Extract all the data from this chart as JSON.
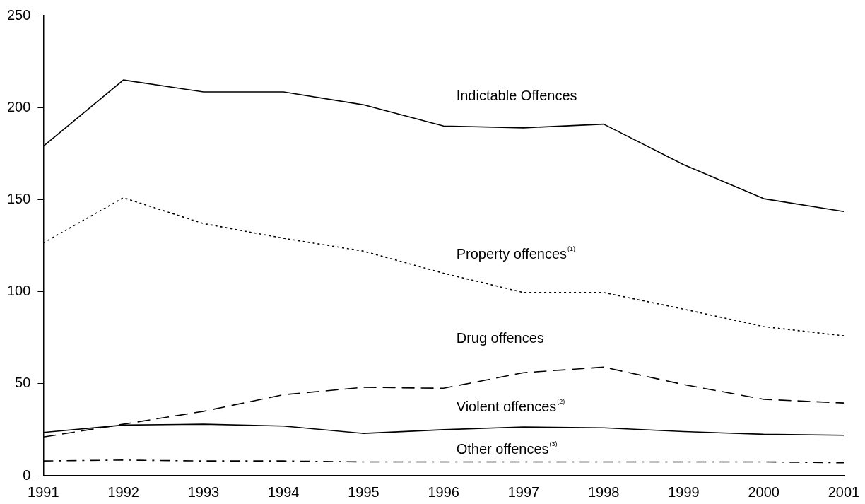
{
  "chart_data": {
    "type": "line",
    "categories": [
      "1991",
      "1992",
      "1993",
      "1994",
      "1995",
      "1996",
      "1997",
      "1998",
      "1999",
      "2000",
      "2001"
    ],
    "ylim": [
      0,
      250
    ],
    "yticks": [
      0,
      50,
      100,
      150,
      200,
      250
    ],
    "grid": false,
    "legend": false,
    "marker": "none",
    "series": [
      {
        "name": "Indictable Offences",
        "color": "#000000",
        "line_style": "solid",
        "values": [
          179,
          215,
          208.5,
          208.5,
          201.5,
          190,
          189,
          191,
          169,
          150.5,
          143.5
        ]
      },
      {
        "name": "Property offences$^{(1)}$",
        "color": "#000000",
        "line_style": "dotted",
        "values": [
          126.5,
          151,
          137,
          129,
          122,
          110,
          99.5,
          99.5,
          90.5,
          81,
          76
        ]
      },
      {
        "name": "Drug offences",
        "color": "#000000",
        "line_style": "dashed",
        "values": [
          21,
          28,
          35,
          44,
          48,
          47.5,
          56,
          59,
          49.5,
          41.5,
          39.5
        ]
      },
      {
        "name": "Violent offences$^{(2)}$",
        "color": "#000000",
        "line_style": "solid",
        "values": [
          23.5,
          27.5,
          28,
          27,
          23,
          25,
          26.5,
          26,
          24,
          22.5,
          22
        ]
      },
      {
        "name": "Other offences$^{(3)}$",
        "color": "#000000",
        "line_style": "dashdot",
        "values": [
          8,
          8.5,
          8,
          8,
          7.5,
          7.5,
          7.5,
          7.5,
          7.5,
          7.5,
          7
        ]
      }
    ]
  }
}
